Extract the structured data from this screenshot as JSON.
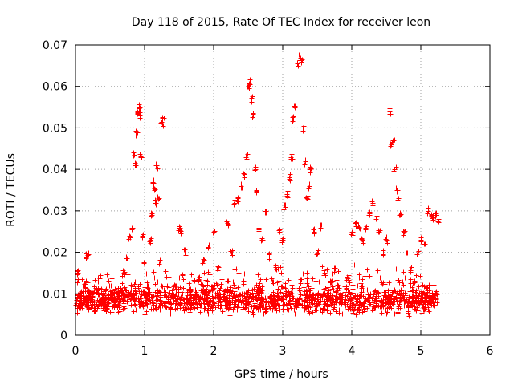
{
  "chart_data": {
    "type": "scatter",
    "title": "Day 118 of 2015, Rate Of TEC Index for receiver leon",
    "xlabel": "GPS time / hours",
    "ylabel": "ROTI / TECUs",
    "xlim": [
      0,
      6
    ],
    "ylim": [
      0,
      0.07
    ],
    "x_ticks": [
      0,
      1,
      2,
      3,
      4,
      5,
      6
    ],
    "x_tick_labels": [
      "0",
      "1",
      "2",
      "3",
      "4",
      "5",
      "6"
    ],
    "y_ticks": [
      0,
      0.01,
      0.02,
      0.03,
      0.04,
      0.05,
      0.06,
      0.07
    ],
    "y_tick_labels": [
      "0",
      "0.01",
      "0.02",
      "0.03",
      "0.04",
      "0.05",
      "0.06",
      "0.07"
    ],
    "grid": true,
    "marker": "+",
    "color": "#ff0000",
    "series": [
      {
        "name": "ROTI",
        "points": [
          [
            0.02,
            0.0155
          ],
          [
            0.05,
            0.007
          ],
          [
            0.08,
            0.0105
          ],
          [
            0.1,
            0.0085
          ],
          [
            0.13,
            0.012
          ],
          [
            0.16,
            0.019
          ],
          [
            0.18,
            0.02
          ],
          [
            0.2,
            0.0095
          ],
          [
            0.24,
            0.008
          ],
          [
            0.28,
            0.006
          ],
          [
            0.32,
            0.011
          ],
          [
            0.36,
            0.0075
          ],
          [
            0.4,
            0.009
          ],
          [
            0.45,
            0.0065
          ],
          [
            0.5,
            0.01
          ],
          [
            0.55,
            0.0085
          ],
          [
            0.6,
            0.007
          ],
          [
            0.65,
            0.0115
          ],
          [
            0.7,
            0.015
          ],
          [
            0.75,
            0.019
          ],
          [
            0.78,
            0.024
          ],
          [
            0.82,
            0.026
          ],
          [
            0.84,
            0.044
          ],
          [
            0.86,
            0.041
          ],
          [
            0.88,
            0.049
          ],
          [
            0.9,
            0.054
          ],
          [
            0.92,
            0.055
          ],
          [
            0.93,
            0.053
          ],
          [
            0.95,
            0.043
          ],
          [
            0.97,
            0.024
          ],
          [
            1.0,
            0.017
          ],
          [
            1.05,
            0.012
          ],
          [
            1.08,
            0.023
          ],
          [
            1.1,
            0.029
          ],
          [
            1.12,
            0.037
          ],
          [
            1.14,
            0.035
          ],
          [
            1.16,
            0.032
          ],
          [
            1.18,
            0.041
          ],
          [
            1.2,
            0.033
          ],
          [
            1.22,
            0.018
          ],
          [
            1.25,
            0.051
          ],
          [
            1.26,
            0.052
          ],
          [
            1.3,
            0.01
          ],
          [
            1.35,
            0.008
          ],
          [
            1.4,
            0.0095
          ],
          [
            1.45,
            0.012
          ],
          [
            1.5,
            0.026
          ],
          [
            1.52,
            0.0245
          ],
          [
            1.58,
            0.02
          ],
          [
            1.65,
            0.011
          ],
          [
            1.7,
            0.0085
          ],
          [
            1.78,
            0.014
          ],
          [
            1.85,
            0.018
          ],
          [
            1.92,
            0.021
          ],
          [
            2.0,
            0.025
          ],
          [
            2.05,
            0.016
          ],
          [
            2.1,
            0.012
          ],
          [
            2.15,
            0.009
          ],
          [
            2.2,
            0.027
          ],
          [
            2.25,
            0.02
          ],
          [
            2.3,
            0.032
          ],
          [
            2.35,
            0.033
          ],
          [
            2.4,
            0.036
          ],
          [
            2.44,
            0.0385
          ],
          [
            2.47,
            0.043
          ],
          [
            2.5,
            0.06
          ],
          [
            2.52,
            0.061
          ],
          [
            2.55,
            0.057
          ],
          [
            2.57,
            0.053
          ],
          [
            2.6,
            0.04
          ],
          [
            2.62,
            0.035
          ],
          [
            2.65,
            0.026
          ],
          [
            2.7,
            0.023
          ],
          [
            2.75,
            0.03
          ],
          [
            2.8,
            0.019
          ],
          [
            2.85,
            0.013
          ],
          [
            2.9,
            0.016
          ],
          [
            2.95,
            0.025
          ],
          [
            3.0,
            0.023
          ],
          [
            3.03,
            0.031
          ],
          [
            3.06,
            0.034
          ],
          [
            3.09,
            0.038
          ],
          [
            3.12,
            0.043
          ],
          [
            3.15,
            0.052
          ],
          [
            3.18,
            0.055
          ],
          [
            3.22,
            0.065
          ],
          [
            3.25,
            0.067
          ],
          [
            3.27,
            0.066
          ],
          [
            3.3,
            0.05
          ],
          [
            3.33,
            0.042
          ],
          [
            3.35,
            0.033
          ],
          [
            3.38,
            0.036
          ],
          [
            3.4,
            0.04
          ],
          [
            3.45,
            0.025
          ],
          [
            3.5,
            0.02
          ],
          [
            3.55,
            0.026
          ],
          [
            3.6,
            0.015
          ],
          [
            3.65,
            0.01
          ],
          [
            3.7,
            0.013
          ],
          [
            3.75,
            0.016
          ],
          [
            3.8,
            0.012
          ],
          [
            3.85,
            0.009
          ],
          [
            3.9,
            0.011
          ],
          [
            3.95,
            0.014
          ],
          [
            4.0,
            0.025
          ],
          [
            4.05,
            0.027
          ],
          [
            4.1,
            0.026
          ],
          [
            4.15,
            0.023
          ],
          [
            4.2,
            0.026
          ],
          [
            4.25,
            0.029
          ],
          [
            4.3,
            0.032
          ],
          [
            4.35,
            0.028
          ],
          [
            4.4,
            0.025
          ],
          [
            4.45,
            0.02
          ],
          [
            4.5,
            0.023
          ],
          [
            4.55,
            0.054
          ],
          [
            4.57,
            0.046
          ],
          [
            4.6,
            0.047
          ],
          [
            4.62,
            0.04
          ],
          [
            4.65,
            0.035
          ],
          [
            4.67,
            0.033
          ],
          [
            4.7,
            0.029
          ],
          [
            4.75,
            0.025
          ],
          [
            4.8,
            0.02
          ],
          [
            4.85,
            0.016
          ],
          [
            4.9,
            0.013
          ],
          [
            4.95,
            0.02
          ],
          [
            5.0,
            0.023
          ],
          [
            5.05,
            0.022
          ],
          [
            5.1,
            0.03
          ],
          [
            5.15,
            0.029
          ],
          [
            5.18,
            0.0285
          ],
          [
            5.22,
            0.029
          ],
          [
            5.25,
            0.028
          ]
        ]
      }
    ],
    "background_band": {
      "description": "dense band of points between roughly 0.004 and 0.013 from 0 to 5.25 hours",
      "x_range": [
        0,
        5.25
      ],
      "y_range": [
        0.004,
        0.013
      ]
    }
  }
}
